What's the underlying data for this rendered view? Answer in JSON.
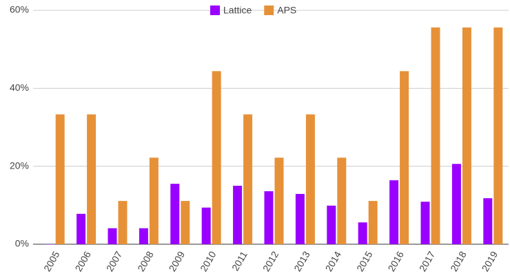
{
  "chart_data": {
    "type": "bar",
    "categories": [
      "2005",
      "2006",
      "2007",
      "2008",
      "2009",
      "2010",
      "2011",
      "2012",
      "2013",
      "2014",
      "2015",
      "2016",
      "2017",
      "2018",
      "2019"
    ],
    "series": [
      {
        "name": "Lattice",
        "color": "#9900ff",
        "values": [
          0,
          7.8,
          4.1,
          4.1,
          15.5,
          9.4,
          15.0,
          13.6,
          12.9,
          9.9,
          5.6,
          16.4,
          10.9,
          20.6,
          11.8
        ]
      },
      {
        "name": "APS",
        "color": "#e69138",
        "values": [
          33.3,
          33.3,
          11.1,
          22.2,
          11.1,
          44.4,
          33.3,
          22.2,
          33.3,
          22.2,
          11.1,
          44.4,
          55.6,
          55.6,
          55.6
        ]
      }
    ],
    "ylim": [
      0,
      60
    ],
    "yticks": [
      {
        "value": 0,
        "label": "0%"
      },
      {
        "value": 20,
        "label": "20%"
      },
      {
        "value": 40,
        "label": "40%"
      },
      {
        "value": 60,
        "label": "60%"
      }
    ],
    "grid": true,
    "legend": "top"
  }
}
